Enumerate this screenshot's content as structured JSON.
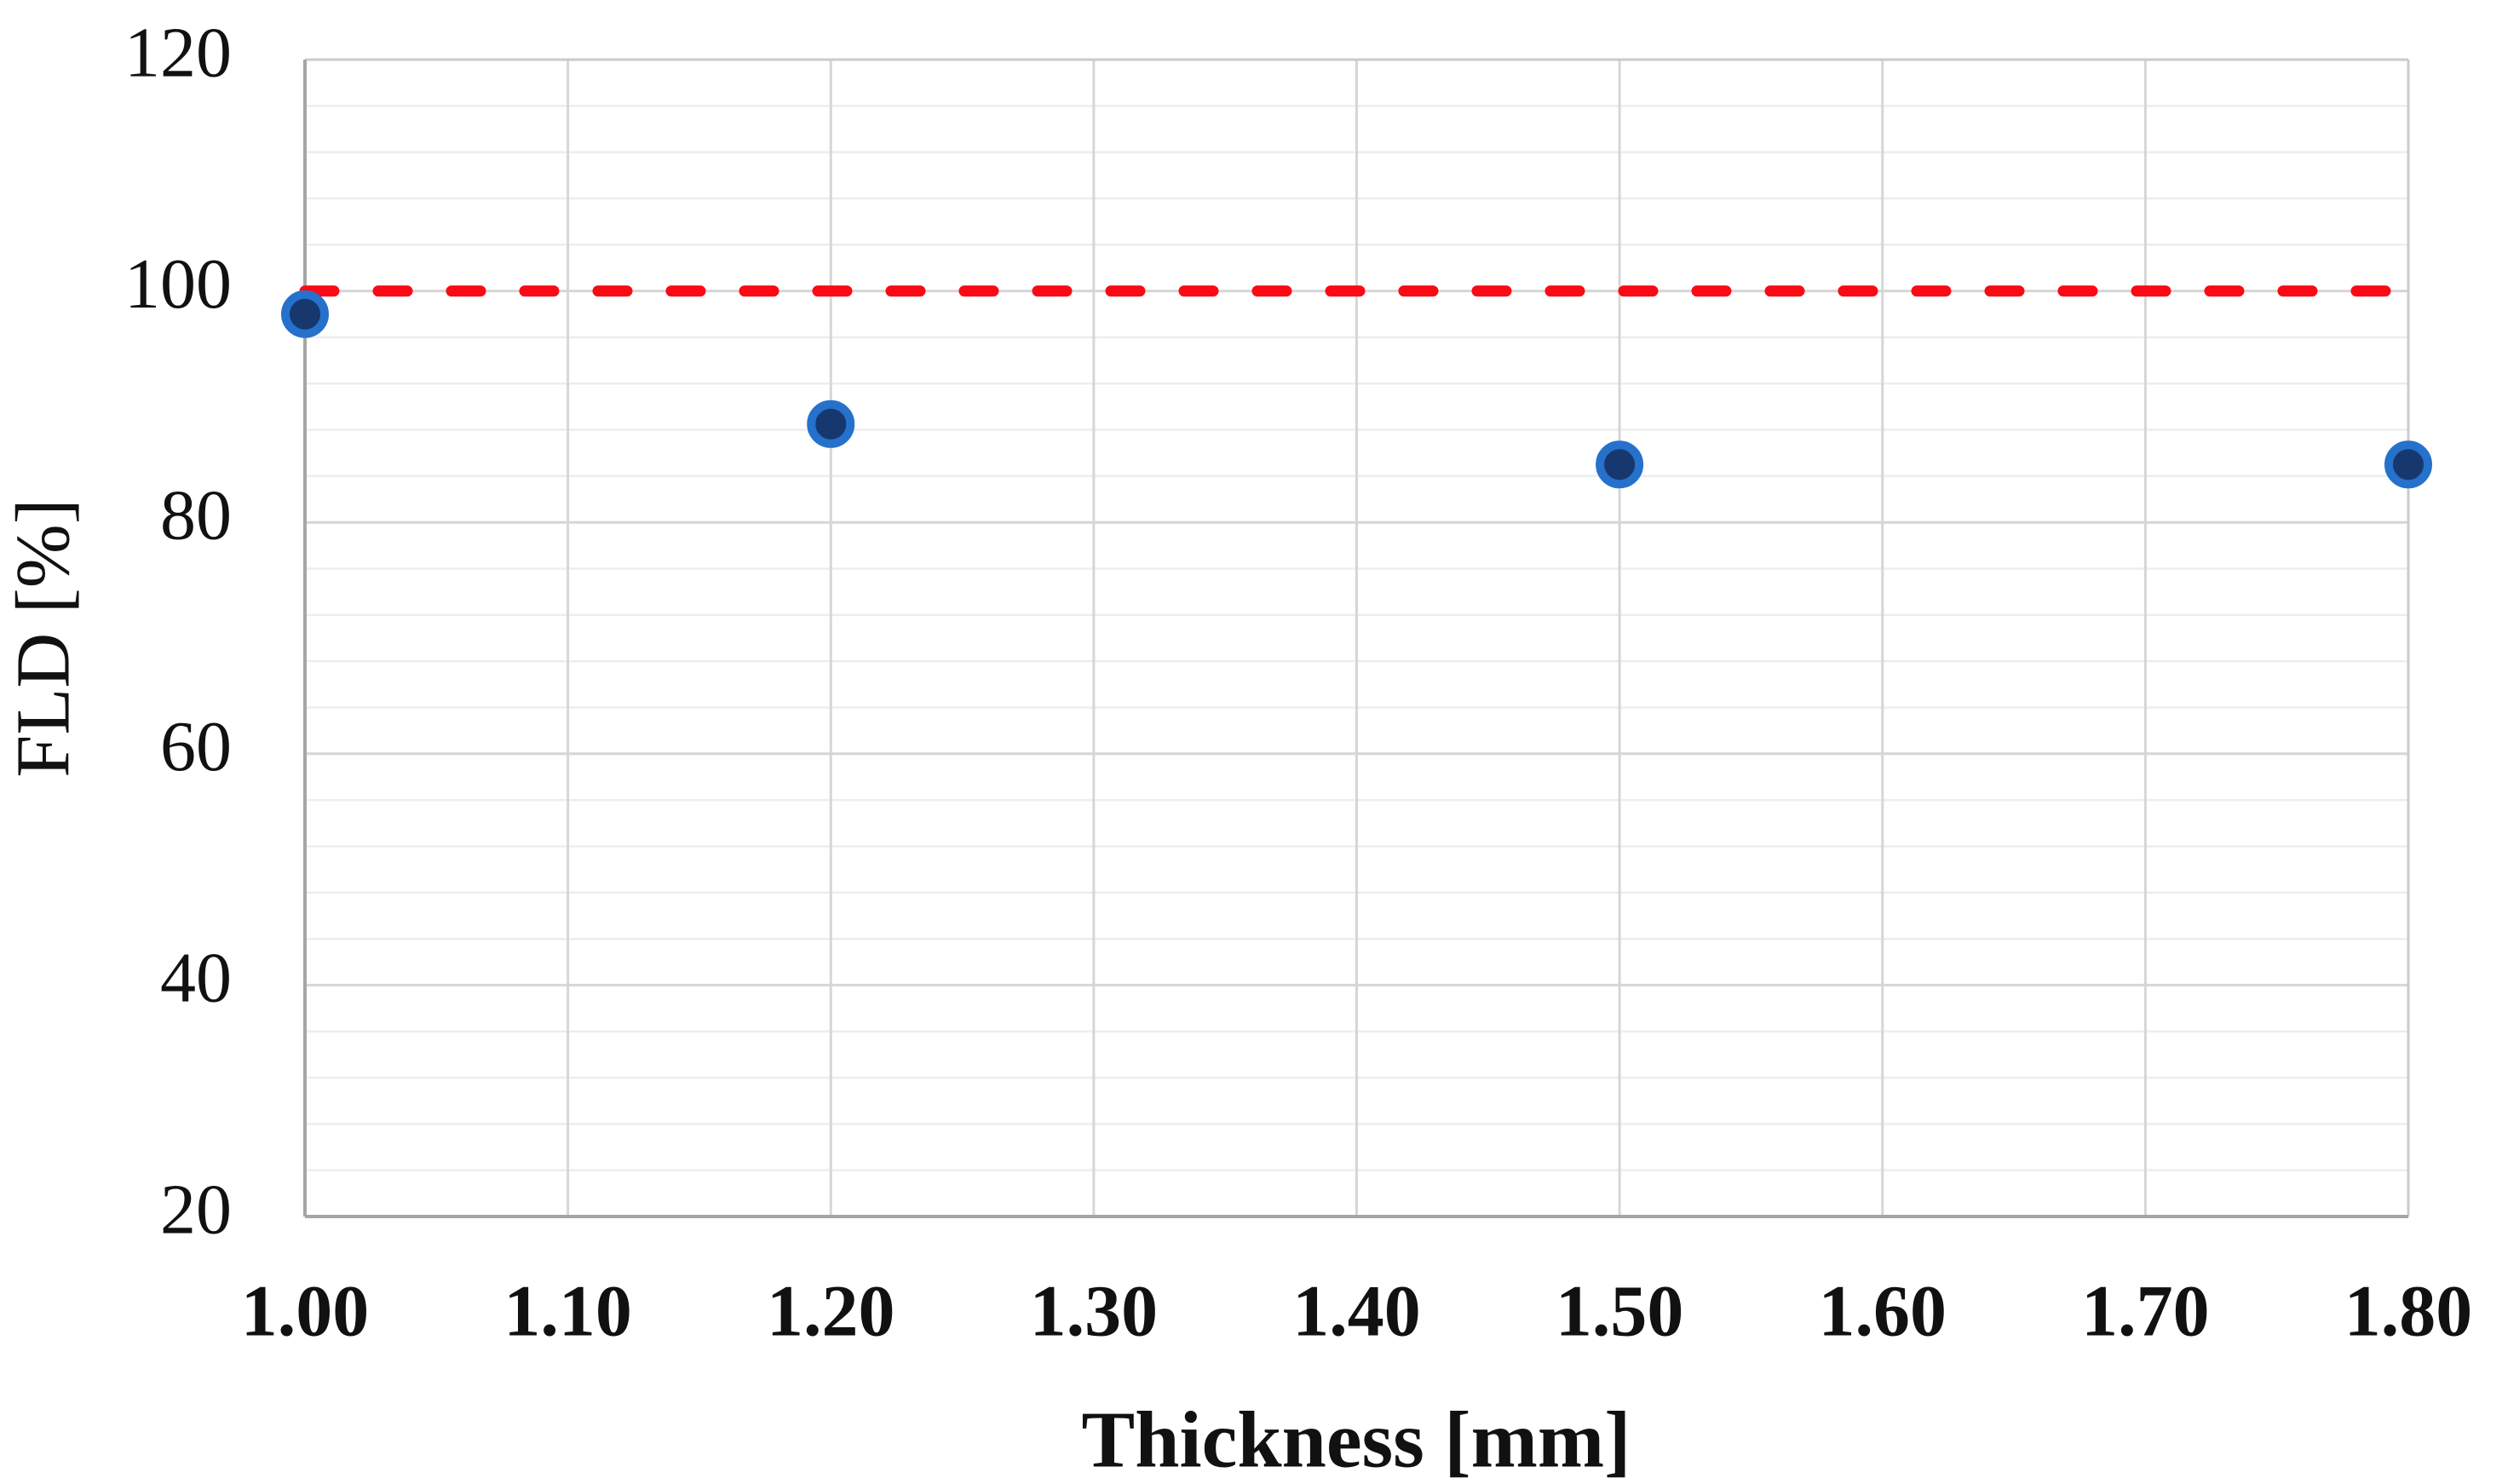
{
  "chart_data": {
    "type": "scatter",
    "title": "",
    "xlabel": "Thickness [mm]",
    "ylabel": "FLD [%]",
    "series": [
      {
        "name": "FLD",
        "x": [
          1.0,
          1.2,
          1.5,
          1.8
        ],
        "y": [
          98,
          88.5,
          85,
          85
        ]
      }
    ],
    "reference_line": {
      "y": 100,
      "style": "dashed"
    },
    "xlim": [
      1.0,
      1.8
    ],
    "ylim": [
      20,
      120
    ],
    "x_tick_labels": [
      "1.00",
      "1.10",
      "1.20",
      "1.30",
      "1.40",
      "1.50",
      "1.60",
      "1.70",
      "1.80"
    ],
    "y_tick_labels": [
      "120",
      "100",
      "80",
      "60",
      "40",
      "20"
    ],
    "y_tick_values": [
      120,
      100,
      80,
      60,
      40,
      20
    ],
    "x_tick_values": [
      1.0,
      1.1,
      1.2,
      1.3,
      1.4,
      1.5,
      1.6,
      1.7,
      1.8
    ],
    "y_major_step": 20,
    "y_minor_step": 4,
    "grid": {
      "horizontal": "major+minor",
      "vertical": "major only"
    },
    "legend_position": "none"
  },
  "colors": {
    "background": "#FFFFFF",
    "marker_fill": "#16386E",
    "marker_stroke": "#2571CB",
    "reference_line": "#FA0A14",
    "grid_major": "#D6D6D6",
    "grid_minor": "#EDEDED",
    "border_light": "#CBCBCB",
    "axis_line": "#A6A6A6",
    "text": "#111111"
  }
}
